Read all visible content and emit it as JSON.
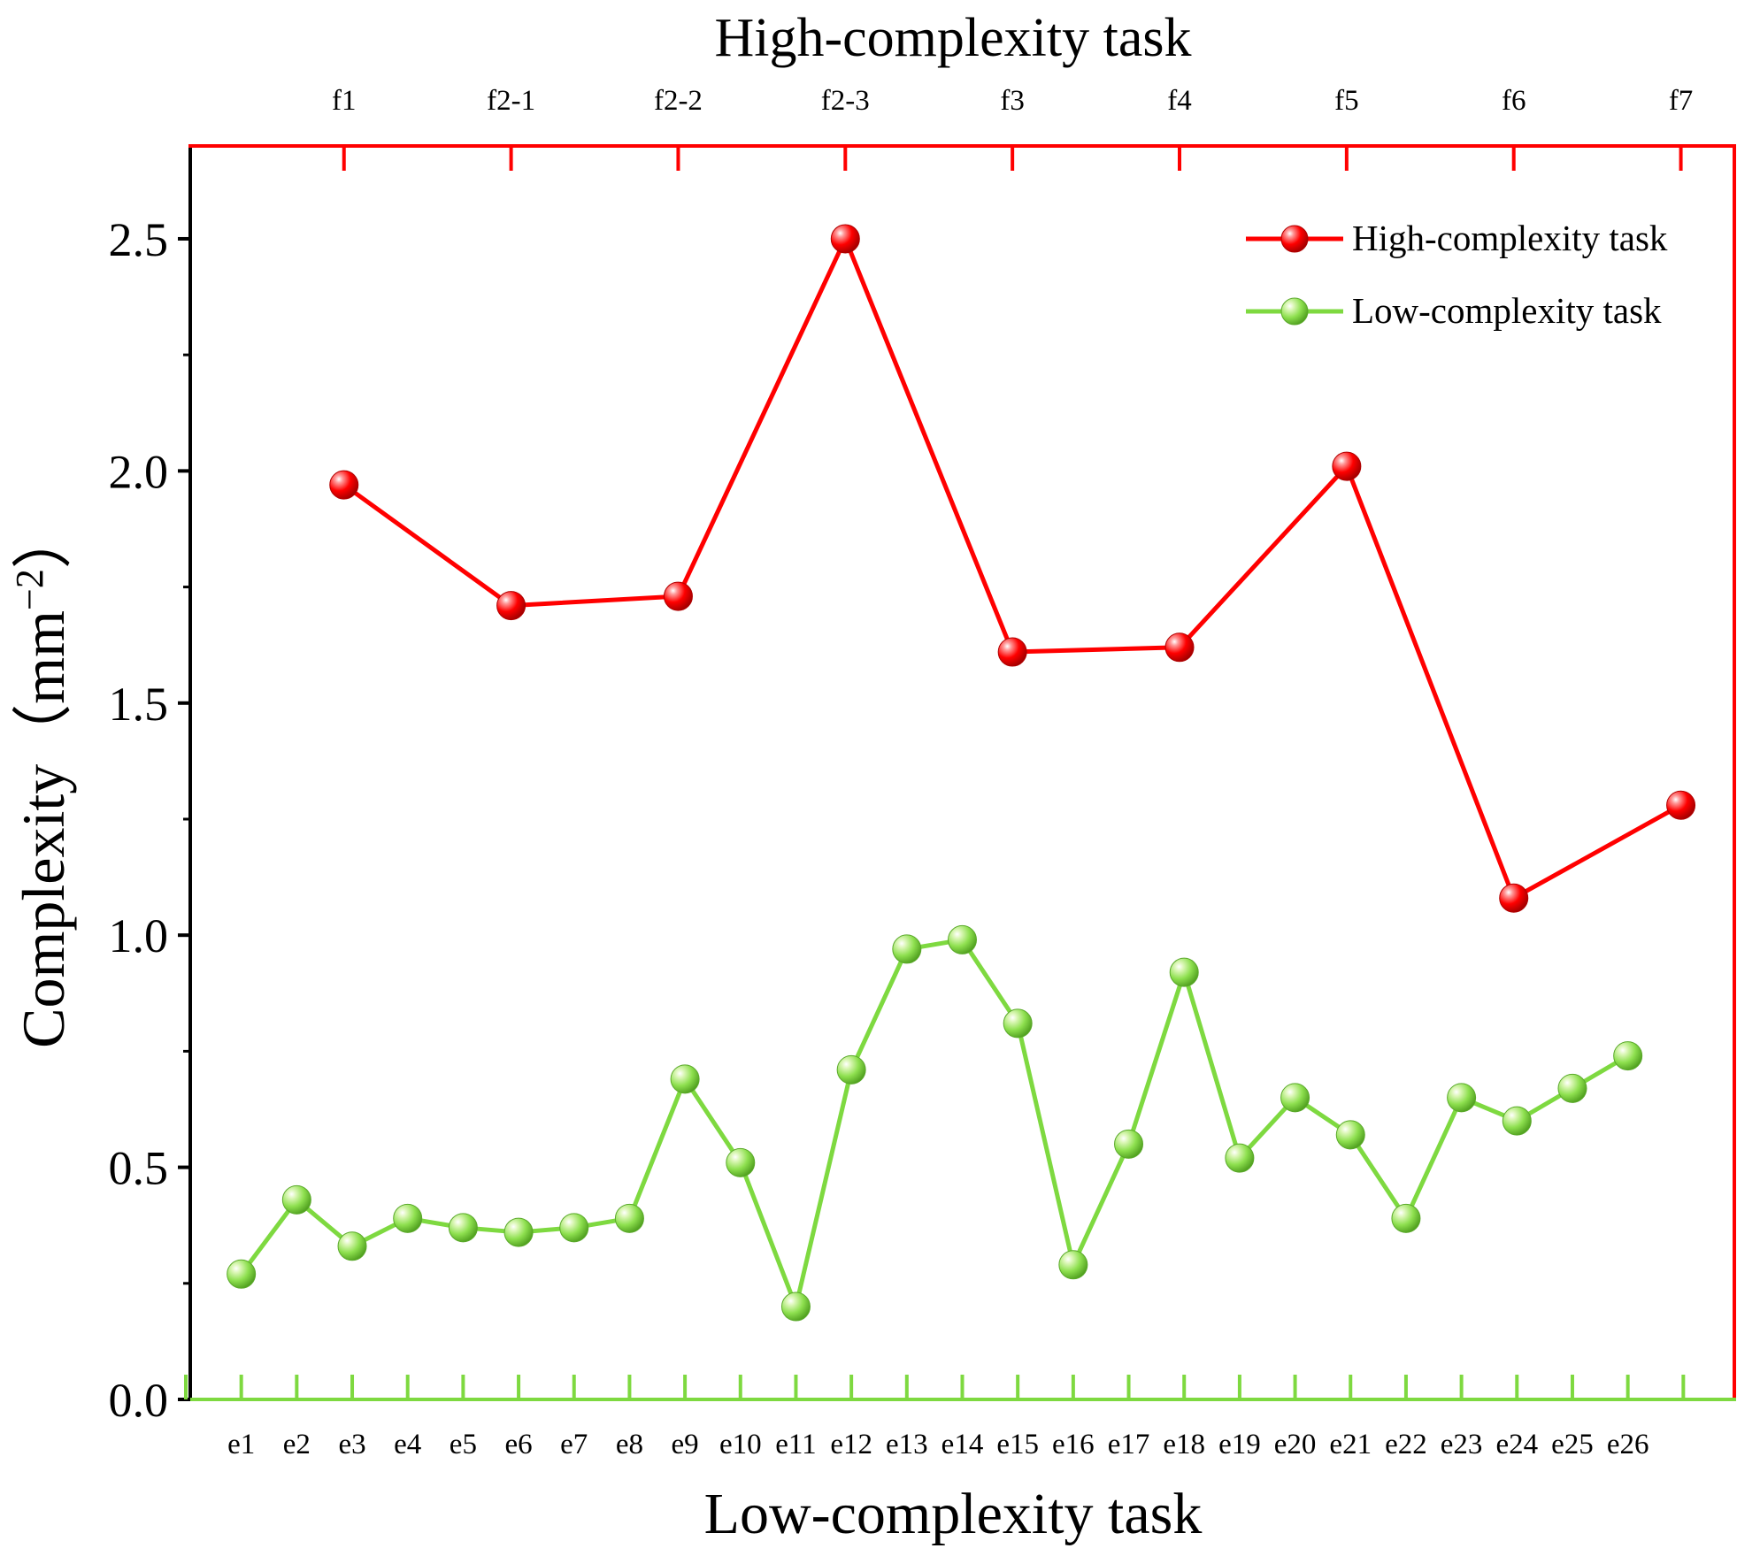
{
  "chart_data": {
    "type": "line",
    "title_top": "High-complexity task",
    "xlabel": "Low-complexity task",
    "ylabel": "Complexity",
    "ylabel_unit_paren_open": "（",
    "ylabel_unit_base": "mm",
    "ylabel_unit_exp": "−2",
    "ylabel_unit_paren_close": "）",
    "ylim": [
      0,
      2.7
    ],
    "yticks": [
      0.0,
      0.5,
      1.0,
      1.5,
      2.0,
      2.5
    ],
    "ytick_labels": [
      "0.0",
      "0.5",
      "1.0",
      "1.5",
      "2.0",
      "2.5"
    ],
    "x_bottom_range": [
      -0.92,
      26.92
    ],
    "x_top_range": [
      -0.92,
      8.32
    ],
    "bottom_categories": [
      "e1",
      "e2",
      "e3",
      "e4",
      "e5",
      "e6",
      "e7",
      "e8",
      "e9",
      "e10",
      "e11",
      "e12",
      "e13",
      "e14",
      "e15",
      "e16",
      "e17",
      "e18",
      "e19",
      "e20",
      "e21",
      "e22",
      "e23",
      "e24",
      "e25",
      "e26"
    ],
    "top_categories": [
      "f1",
      "f2-1",
      "f2-2",
      "f2-3",
      "f3",
      "f4",
      "f5",
      "f6",
      "f7"
    ],
    "series": [
      {
        "name": "High-complexity task",
        "axis": "top",
        "color": "#ff0000",
        "values": [
          1.97,
          1.71,
          1.73,
          2.5,
          1.61,
          1.62,
          2.01,
          1.08,
          1.28
        ]
      },
      {
        "name": "Low-complexity task",
        "axis": "bottom",
        "color": "#7ed940",
        "values": [
          0.27,
          0.43,
          0.33,
          0.39,
          0.37,
          0.36,
          0.37,
          0.39,
          0.69,
          0.51,
          0.2,
          0.71,
          0.97,
          0.99,
          0.81,
          0.29,
          0.55,
          0.92,
          0.52,
          0.65,
          0.57,
          0.39,
          0.65,
          0.6,
          0.67,
          0.74
        ]
      }
    ],
    "legend_position": "top-right",
    "colors": {
      "top_axis": "#ff0000",
      "bottom_axis": "#7ed940",
      "left_axis": "#000000"
    }
  }
}
